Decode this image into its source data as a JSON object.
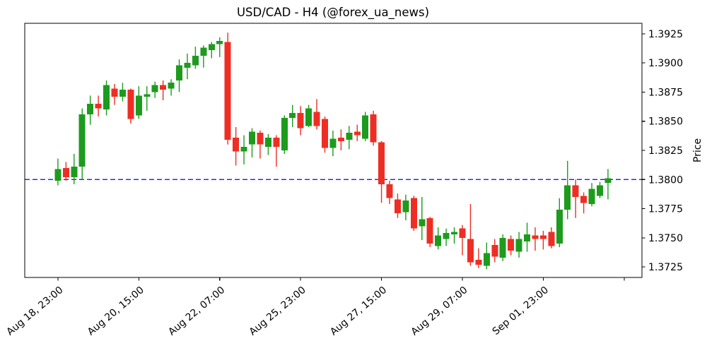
{
  "chart_data": {
    "type": "candlestick",
    "title": "USD/CAD - H4 (@forex_ua_news)",
    "ylabel": "Price",
    "xlabel": "",
    "timeframe": "H4",
    "grid": false,
    "legend": "none",
    "ylim": [
      1.3716,
      1.3934
    ],
    "xlim_bars": [
      -4.1,
      72.2
    ],
    "y_ticks": [
      {
        "v": 1.3725,
        "label": "1.3725"
      },
      {
        "v": 1.375,
        "label": "1.3750"
      },
      {
        "v": 1.3775,
        "label": "1.3775"
      },
      {
        "v": 1.38,
        "label": "1.3800"
      },
      {
        "v": 1.3825,
        "label": "1.3825"
      },
      {
        "v": 1.385,
        "label": "1.3850"
      },
      {
        "v": 1.3875,
        "label": "1.3875"
      },
      {
        "v": 1.39,
        "label": "1.3900"
      },
      {
        "v": 1.3925,
        "label": "1.3925"
      }
    ],
    "x_ticks": [
      {
        "bar": 0,
        "label": "Aug 18, 23:00"
      },
      {
        "bar": 10,
        "label": "Aug 20, 15:00"
      },
      {
        "bar": 20,
        "label": "Aug 22, 07:00"
      },
      {
        "bar": 30,
        "label": "Aug 25, 23:00"
      },
      {
        "bar": 40,
        "label": "Aug 27, 15:00"
      },
      {
        "bar": 50,
        "label": "Aug 29, 07:00"
      },
      {
        "bar": 60,
        "label": "Sep 01, 23:00"
      },
      {
        "bar": 70,
        "label": ""
      }
    ],
    "hline": {
      "price": 1.38,
      "color": "#0000ff",
      "style": "dashed"
    },
    "colors": {
      "up": "#1d9b1d",
      "down": "#ee2e24",
      "axis": "#000000"
    },
    "ohlc_format": [
      "open",
      "high",
      "low",
      "close"
    ],
    "candles": [
      [
        1.3799,
        1.3818,
        1.3795,
        1.3809
      ],
      [
        1.381,
        1.3815,
        1.3799,
        1.3802
      ],
      [
        1.3802,
        1.3822,
        1.3796,
        1.3811
      ],
      [
        1.3811,
        1.3861,
        1.38,
        1.3856
      ],
      [
        1.3856,
        1.3872,
        1.3847,
        1.3865
      ],
      [
        1.3865,
        1.3872,
        1.3854,
        1.3861
      ],
      [
        1.386,
        1.3885,
        1.3855,
        1.3881
      ],
      [
        1.3878,
        1.3882,
        1.3864,
        1.3871
      ],
      [
        1.3871,
        1.3883,
        1.3867,
        1.3877
      ],
      [
        1.3877,
        1.3878,
        1.3848,
        1.3852
      ],
      [
        1.3855,
        1.388,
        1.3852,
        1.3872
      ],
      [
        1.3871,
        1.388,
        1.3859,
        1.3873
      ],
      [
        1.3875,
        1.3884,
        1.387,
        1.3881
      ],
      [
        1.3881,
        1.3885,
        1.3868,
        1.3877
      ],
      [
        1.3878,
        1.3886,
        1.3872,
        1.3883
      ],
      [
        1.3885,
        1.3903,
        1.3875,
        1.3898
      ],
      [
        1.3896,
        1.3908,
        1.3886,
        1.39
      ],
      [
        1.3898,
        1.3914,
        1.3895,
        1.3906
      ],
      [
        1.3906,
        1.3915,
        1.3896,
        1.3913
      ],
      [
        1.3911,
        1.3918,
        1.3904,
        1.3916
      ],
      [
        1.3916,
        1.3922,
        1.3905,
        1.3919
      ],
      [
        1.3918,
        1.3926,
        1.383,
        1.3834
      ],
      [
        1.3836,
        1.3845,
        1.3812,
        1.3824
      ],
      [
        1.3824,
        1.3838,
        1.3813,
        1.3828
      ],
      [
        1.383,
        1.3844,
        1.3819,
        1.3841
      ],
      [
        1.384,
        1.3842,
        1.3818,
        1.383
      ],
      [
        1.3828,
        1.3839,
        1.3821,
        1.3836
      ],
      [
        1.3836,
        1.3838,
        1.3811,
        1.3828
      ],
      [
        1.3825,
        1.3855,
        1.3822,
        1.3853
      ],
      [
        1.3853,
        1.3864,
        1.3845,
        1.3857
      ],
      [
        1.3857,
        1.3863,
        1.3838,
        1.3844
      ],
      [
        1.3846,
        1.3864,
        1.3845,
        1.3861
      ],
      [
        1.3858,
        1.3869,
        1.3843,
        1.3846
      ],
      [
        1.3852,
        1.3854,
        1.3823,
        1.3827
      ],
      [
        1.3827,
        1.3842,
        1.382,
        1.3835
      ],
      [
        1.3836,
        1.3843,
        1.3825,
        1.3833
      ],
      [
        1.3834,
        1.3846,
        1.3826,
        1.384
      ],
      [
        1.3841,
        1.3847,
        1.3833,
        1.3838
      ],
      [
        1.3835,
        1.3858,
        1.3833,
        1.3855
      ],
      [
        1.3856,
        1.3859,
        1.3829,
        1.3832
      ],
      [
        1.3832,
        1.3833,
        1.378,
        1.3796
      ],
      [
        1.3796,
        1.3799,
        1.3779,
        1.3784
      ],
      [
        1.3783,
        1.3788,
        1.3767,
        1.3771
      ],
      [
        1.3772,
        1.3787,
        1.3765,
        1.3782
      ],
      [
        1.3784,
        1.3786,
        1.3756,
        1.3758
      ],
      [
        1.376,
        1.3785,
        1.3748,
        1.3766
      ],
      [
        1.3767,
        1.3768,
        1.3742,
        1.3745
      ],
      [
        1.3743,
        1.3759,
        1.374,
        1.3752
      ],
      [
        1.3749,
        1.3758,
        1.3743,
        1.3754
      ],
      [
        1.3753,
        1.3759,
        1.3745,
        1.3755
      ],
      [
        1.3758,
        1.3761,
        1.3735,
        1.375
      ],
      [
        1.3749,
        1.3779,
        1.3726,
        1.3729
      ],
      [
        1.3731,
        1.3741,
        1.3724,
        1.3727
      ],
      [
        1.3726,
        1.3746,
        1.3723,
        1.3737
      ],
      [
        1.3744,
        1.3749,
        1.3729,
        1.3734
      ],
      [
        1.3733,
        1.3753,
        1.373,
        1.375
      ],
      [
        1.3749,
        1.3752,
        1.3735,
        1.3739
      ],
      [
        1.3738,
        1.3755,
        1.3733,
        1.3749
      ],
      [
        1.3747,
        1.3763,
        1.3738,
        1.3753
      ],
      [
        1.3752,
        1.3759,
        1.3739,
        1.3749
      ],
      [
        1.3752,
        1.3756,
        1.374,
        1.3749
      ],
      [
        1.3755,
        1.3759,
        1.3741,
        1.3743
      ],
      [
        1.3745,
        1.3784,
        1.3742,
        1.3774
      ],
      [
        1.3774,
        1.3816,
        1.3766,
        1.3795
      ],
      [
        1.3795,
        1.38,
        1.3767,
        1.3785
      ],
      [
        1.3786,
        1.3789,
        1.3771,
        1.378
      ],
      [
        1.3779,
        1.3797,
        1.3777,
        1.3792
      ],
      [
        1.3786,
        1.3798,
        1.3784,
        1.3795
      ],
      [
        1.3797,
        1.3809,
        1.3783,
        1.3801
      ]
    ]
  }
}
